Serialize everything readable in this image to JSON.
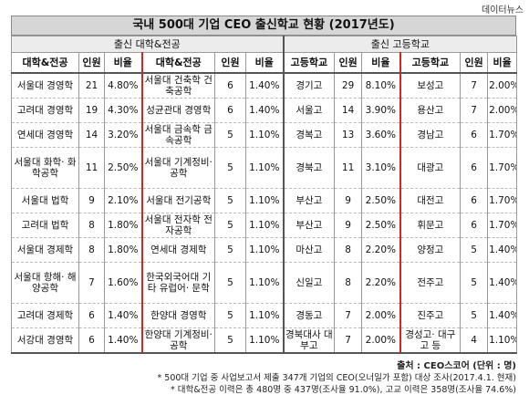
{
  "brand": "데이터뉴스",
  "title": "국내 500대 기업 CEO 출신학교 현황 (2017년도)",
  "sections": {
    "university": "출신 대학&전공",
    "highschool": "출신 고등학교"
  },
  "headers": {
    "univ_major": "대학&전공",
    "count": "인원",
    "ratio": "비율",
    "highschool": "고등학교"
  },
  "rows": [
    {
      "u1": "서울대 경영학",
      "c1": "21",
      "r1": "4.80%",
      "u2": "서울대 건축학 건축공학",
      "c2": "6",
      "r2": "1.40%",
      "h1": "경기고",
      "hc1": "29",
      "hr1": "8.10%",
      "h2": "보성고",
      "hc2": "7",
      "hr2": "2.00%"
    },
    {
      "u1": "고려대 경영학",
      "c1": "19",
      "r1": "4.30%",
      "u2": "성균관대 경영학",
      "c2": "6",
      "r2": "1.40%",
      "h1": "서울고",
      "hc1": "14",
      "hr1": "3.90%",
      "h2": "용산고",
      "hc2": "7",
      "hr2": "2.00%"
    },
    {
      "u1": "연세대 경영학",
      "c1": "14",
      "r1": "3.20%",
      "u2": "서울대 금속학 금속공학",
      "c2": "5",
      "r2": "1.10%",
      "h1": "경복고",
      "hc1": "13",
      "hr1": "3.60%",
      "h2": "경남고",
      "hc2": "6",
      "hr2": "1.70%"
    },
    {
      "u1": "서울대 화학· 화학공학",
      "c1": "11",
      "r1": "2.50%",
      "u2": "서울대 기계정비·공학",
      "c2": "5",
      "r2": "1.10%",
      "h1": "경북고",
      "hc1": "11",
      "hr1": "3.10%",
      "h2": "대광고",
      "hc2": "6",
      "hr2": "1.70%"
    },
    {
      "u1": "서울대 법학",
      "c1": "9",
      "r1": "2.10%",
      "u2": "서울대 전기공학",
      "c2": "5",
      "r2": "1.10%",
      "h1": "부산고",
      "hc1": "9",
      "hr1": "2.50%",
      "h2": "대전고",
      "hc2": "6",
      "hr2": "1.70%"
    },
    {
      "u1": "고려대 법학",
      "c1": "8",
      "r1": "1.80%",
      "u2": "서울대 전자학 전자공학",
      "c2": "5",
      "r2": "1.10%",
      "h1": "부산고",
      "hc1": "9",
      "hr1": "2.50%",
      "h2": "휘문고",
      "hc2": "6",
      "hr2": "1.70%"
    },
    {
      "u1": "서울대 경제학",
      "c1": "8",
      "r1": "1.80%",
      "u2": "연세대 경제학",
      "c2": "5",
      "r2": "1.10%",
      "h1": "마산고",
      "hc1": "8",
      "hr1": "2.20%",
      "h2": "양정고",
      "hc2": "5",
      "hr2": "1.40%"
    },
    {
      "u1": "서울대 항해· 해양공학",
      "c1": "7",
      "r1": "1.60%",
      "u2": "한국외국어대 기타 유럽어· 문학",
      "c2": "5",
      "r2": "1.10%",
      "h1": "신일고",
      "hc1": "8",
      "hr1": "2.20%",
      "h2": "전주고",
      "hc2": "5",
      "hr2": "1.40%"
    },
    {
      "u1": "고려대 경제학",
      "c1": "6",
      "r1": "1.40%",
      "u2": "한양대 경영학",
      "c2": "5",
      "r2": "1.10%",
      "h1": "경동고",
      "hc1": "7",
      "hr1": "2.00%",
      "h2": "진주고",
      "hc2": "5",
      "hr2": "1.40%"
    },
    {
      "u1": "서강대 경영학",
      "c1": "6",
      "r1": "1.40%",
      "u2": "한양대 기계정비·공학",
      "c2": "5",
      "r2": "1.10%",
      "h1": "경북대사 대부고",
      "hc1": "7",
      "hr1": "2.00%",
      "h2": "경성고· 대구고 등",
      "hc2": "4",
      "hr2": "1.10%"
    }
  ],
  "footer": {
    "source": "출처 : CEO스코어 (단위 : 명)",
    "note1": "* 500대 기업 중 사업보고서 제출 347개 기업의 CEO(오너일가 포함) 대상 조사(2017.4.1. 현재)",
    "note2": "* 대학&전공 이력은 총 480명 중 437명(조사율 91.0%), 고교 이력은 358명(조사율 74.6%)"
  }
}
